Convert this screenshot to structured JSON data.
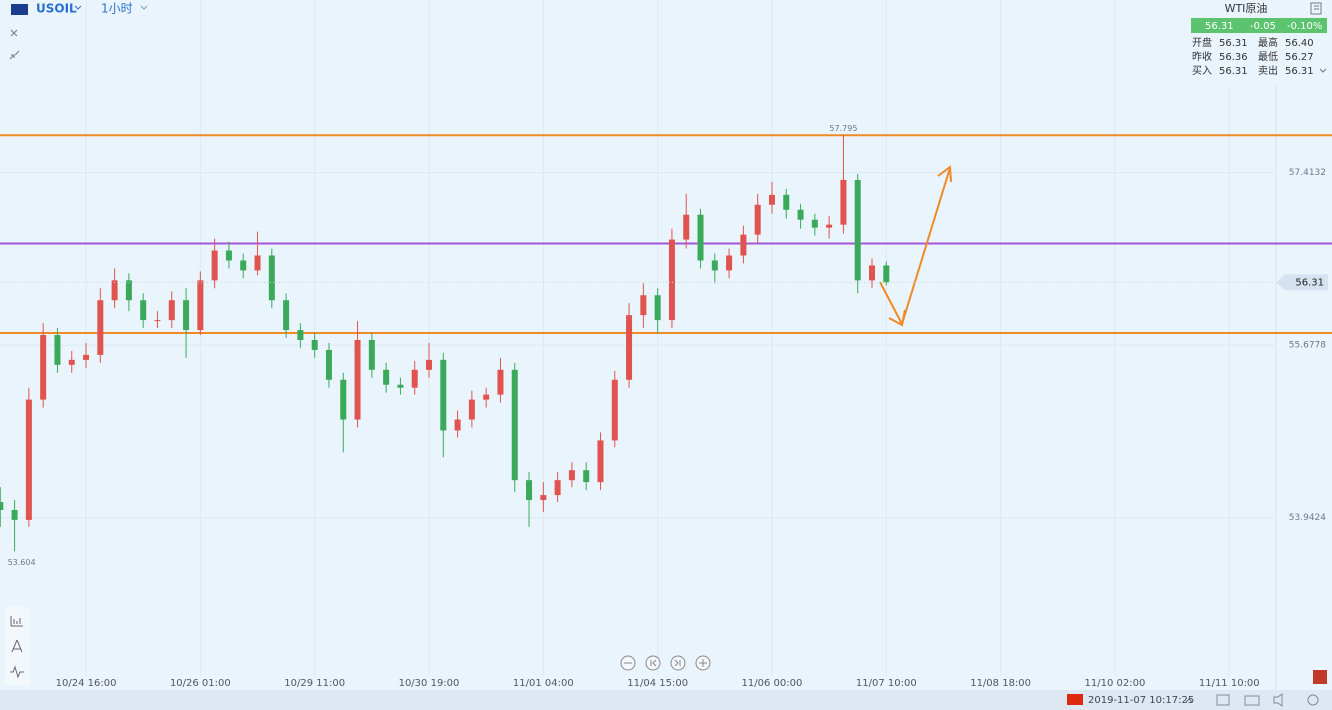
{
  "header": {
    "symbol": "USOIL",
    "interval": "1小时"
  },
  "quote": {
    "name": "WTI原油",
    "price": "56.31",
    "change": "-0.05",
    "change_pct": "-0.10%",
    "rows": [
      [
        "开盘",
        "56.31",
        "最高",
        "56.40"
      ],
      [
        "昨收",
        "56.36",
        "最低",
        "56.27"
      ],
      [
        "买入",
        "56.31",
        "卖出",
        "56.31"
      ]
    ]
  },
  "footer": {
    "datetime": "2019-11-07 10:17:25"
  },
  "chart_data": {
    "type": "candlestick",
    "up_color": "#e0534f",
    "down_color": "#3aaa5a",
    "grid": true,
    "xlim": [
      -0.02,
      89.2
    ],
    "ylim": [
      52.35,
      59.15
    ],
    "xticks": [
      {
        "value": 6,
        "label": "10/24 16:00"
      },
      {
        "value": 14,
        "label": "10/26 01:00"
      },
      {
        "value": 22,
        "label": "10/29 11:00"
      },
      {
        "value": 30,
        "label": "10/30 19:00"
      },
      {
        "value": 38,
        "label": "11/01 04:00"
      },
      {
        "value": 46,
        "label": "11/04 15:00"
      },
      {
        "value": 54,
        "label": "11/06 00:00"
      },
      {
        "value": 62,
        "label": "11/07 10:00"
      },
      {
        "value": 70,
        "label": "11/08 18:00"
      },
      {
        "value": 78,
        "label": "11/10 02:00"
      },
      {
        "value": 86,
        "label": "11/11 10:00"
      }
    ],
    "yticks": [
      57.4132,
      55.6778,
      53.9424
    ],
    "open": [
      54.1,
      54.02,
      53.92,
      55.13,
      55.78,
      55.48,
      55.53,
      55.58,
      56.13,
      56.33,
      56.13,
      55.93,
      55.93,
      56.13,
      55.83,
      56.33,
      56.63,
      56.53,
      56.43,
      56.58,
      56.13,
      55.83,
      55.73,
      55.63,
      55.33,
      54.93,
      55.73,
      55.43,
      55.28,
      55.25,
      55.43,
      55.53,
      54.82,
      54.93,
      55.13,
      55.18,
      55.43,
      54.32,
      54.12,
      54.17,
      54.32,
      54.42,
      54.3,
      54.72,
      55.33,
      55.98,
      56.18,
      55.93,
      56.74,
      56.99,
      56.53,
      56.43,
      56.58,
      56.79,
      57.09,
      57.19,
      57.04,
      56.94,
      56.86,
      56.89,
      57.34,
      56.33,
      56.48
    ],
    "high": [
      54.25,
      54.12,
      55.25,
      55.9,
      55.85,
      55.62,
      55.7,
      56.25,
      56.45,
      56.4,
      56.2,
      56.02,
      56.22,
      56.25,
      56.42,
      56.75,
      56.72,
      56.6,
      56.82,
      56.65,
      56.2,
      55.9,
      55.8,
      55.7,
      55.4,
      55.92,
      55.8,
      55.5,
      55.35,
      55.52,
      55.7,
      55.6,
      55.02,
      55.22,
      55.25,
      55.55,
      55.5,
      54.4,
      54.3,
      54.4,
      54.5,
      54.5,
      54.8,
      55.42,
      56.1,
      56.3,
      56.25,
      56.85,
      57.2,
      57.05,
      56.6,
      56.65,
      56.88,
      57.2,
      57.32,
      57.25,
      57.1,
      57.0,
      56.98,
      57.795,
      57.4,
      56.55,
      56.52
    ],
    "low": [
      53.85,
      53.604,
      53.85,
      55.05,
      55.4,
      55.4,
      55.45,
      55.5,
      56.05,
      56.02,
      55.85,
      55.85,
      55.85,
      55.55,
      55.78,
      56.25,
      56.45,
      56.35,
      56.38,
      56.05,
      55.75,
      55.65,
      55.55,
      55.25,
      54.6,
      54.85,
      55.35,
      55.2,
      55.18,
      55.18,
      55.35,
      54.55,
      54.75,
      54.85,
      55.05,
      55.1,
      54.2,
      53.85,
      54.0,
      54.1,
      54.25,
      54.22,
      54.22,
      54.65,
      55.25,
      55.85,
      55.8,
      55.85,
      56.65,
      56.45,
      56.3,
      56.35,
      56.5,
      56.7,
      57.0,
      56.95,
      56.85,
      56.78,
      56.75,
      56.8,
      56.2,
      56.25,
      56.28
    ],
    "close": [
      54.02,
      53.92,
      55.13,
      55.78,
      55.48,
      55.53,
      55.58,
      56.13,
      56.33,
      56.13,
      55.93,
      55.93,
      56.13,
      55.83,
      56.33,
      56.63,
      56.53,
      56.43,
      56.58,
      56.13,
      55.83,
      55.73,
      55.63,
      55.33,
      54.93,
      55.73,
      55.43,
      55.28,
      55.25,
      55.43,
      55.53,
      54.82,
      54.93,
      55.13,
      55.18,
      55.43,
      54.32,
      54.12,
      54.17,
      54.32,
      54.42,
      54.3,
      54.72,
      55.33,
      55.98,
      56.18,
      55.93,
      56.74,
      56.99,
      56.53,
      56.43,
      56.58,
      56.79,
      57.09,
      57.19,
      57.04,
      56.94,
      56.86,
      56.89,
      57.34,
      56.33,
      56.48,
      56.31
    ],
    "levels": [
      {
        "value": 57.79,
        "color": "#f08a24"
      },
      {
        "value": 56.7,
        "color": "#a456d8"
      },
      {
        "value": 55.8,
        "color": "#f08a24"
      }
    ],
    "high_marker": {
      "x": 59,
      "value": 57.795
    },
    "low_marker": {
      "x": 1,
      "value": 53.604
    },
    "last_price": 56.31
  }
}
